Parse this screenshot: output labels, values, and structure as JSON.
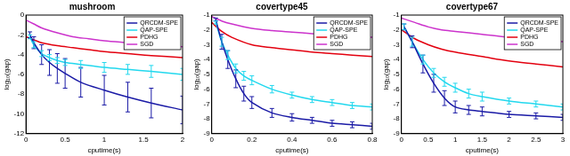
{
  "chart_data": [
    {
      "type": "line",
      "title": "mushroom",
      "xlabel": "cputime(s)",
      "ylabel": "log₁₀(gap)",
      "xlim": [
        0,
        2
      ],
      "xticks": [
        0,
        0.5,
        1,
        1.5,
        2
      ],
      "ylim": [
        -12,
        0
      ],
      "yticks": [
        -12,
        -10,
        -8,
        -6,
        -4,
        -2,
        0
      ],
      "grid": false,
      "legend": "upper right",
      "series": [
        {
          "name": "QRCDM-SPE",
          "color": "#1a1aa6",
          "x": [
            0.05,
            0.1,
            0.2,
            0.3,
            0.4,
            0.5,
            0.7,
            1.0,
            1.3,
            1.6,
            2.0
          ],
          "values": [
            -2,
            -2.8,
            -4,
            -4.8,
            -5.4,
            -5.9,
            -6.8,
            -7.6,
            -8.3,
            -8.9,
            -9.6
          ],
          "errors": [
            0.3,
            0.6,
            1,
            1.3,
            1.5,
            1.5,
            1.5,
            1.5,
            1.5,
            1.5,
            1.4
          ]
        },
        {
          "name": "QAP-SPE",
          "color": "#22d8ee",
          "x": [
            0.05,
            0.1,
            0.2,
            0.3,
            0.4,
            0.5,
            0.7,
            1.0,
            1.3,
            1.6,
            2.0
          ],
          "values": [
            -2.2,
            -3,
            -3.9,
            -4.3,
            -4.6,
            -4.8,
            -5,
            -5.3,
            -5.5,
            -5.7,
            -6
          ],
          "errors": [
            0.2,
            0.3,
            0.3,
            0.3,
            0.3,
            0.3,
            0.4,
            0.5,
            0.5,
            0.6,
            0.6
          ]
        },
        {
          "name": "PDHG",
          "color": "#e3000f",
          "x": [
            0,
            0.1,
            0.2,
            0.4,
            0.6,
            0.8,
            1,
            1.3,
            1.6,
            2
          ],
          "values": [
            -2.2,
            -2.5,
            -2.8,
            -3.1,
            -3.3,
            -3.5,
            -3.7,
            -3.9,
            -4.1,
            -4.3
          ]
        },
        {
          "name": "SGD",
          "color": "#cc33cc",
          "x": [
            0,
            0.1,
            0.2,
            0.4,
            0.6,
            0.8,
            1,
            1.3,
            1.6,
            2
          ],
          "values": [
            -0.5,
            -0.9,
            -1.3,
            -1.8,
            -2.2,
            -2.4,
            -2.6,
            -2.8,
            -3,
            -3.2
          ]
        }
      ]
    },
    {
      "type": "line",
      "title": "covertype45",
      "xlabel": "cputime(s)",
      "ylabel": "log₁₀(gap)",
      "xlim": [
        0,
        0.8
      ],
      "xticks": [
        0,
        0.2,
        0.4,
        0.6,
        0.8
      ],
      "ylim": [
        -9,
        -1
      ],
      "yticks": [
        -9,
        -8,
        -7,
        -6,
        -5,
        -4,
        -3,
        -2,
        -1
      ],
      "grid": false,
      "legend": "upper right",
      "series": [
        {
          "name": "QRCDM-SPE",
          "color": "#1a1aa6",
          "x": [
            0.02,
            0.05,
            0.08,
            0.12,
            0.16,
            0.2,
            0.3,
            0.4,
            0.5,
            0.6,
            0.7,
            0.8
          ],
          "values": [
            -1.3,
            -2.8,
            -4,
            -5.3,
            -6.3,
            -6.9,
            -7.6,
            -7.9,
            -8.1,
            -8.3,
            -8.4,
            -8.5
          ],
          "errors": [
            0.1,
            0.5,
            0.6,
            0.6,
            0.5,
            0.4,
            0.3,
            0.25,
            0.2,
            0.2,
            0.2,
            0.2
          ]
        },
        {
          "name": "QAP-SPE",
          "color": "#22d8ee",
          "x": [
            0.02,
            0.05,
            0.08,
            0.12,
            0.16,
            0.2,
            0.3,
            0.4,
            0.5,
            0.6,
            0.7,
            0.8
          ],
          "values": [
            -1.5,
            -2.8,
            -3.7,
            -4.6,
            -5.1,
            -5.4,
            -6,
            -6.4,
            -6.7,
            -6.9,
            -7.1,
            -7.2
          ],
          "errors": [
            0.1,
            0.3,
            0.3,
            0.3,
            0.3,
            0.3,
            0.25,
            0.2,
            0.2,
            0.2,
            0.2,
            0.2
          ]
        },
        {
          "name": "PDHG",
          "color": "#e3000f",
          "x": [
            0,
            0.05,
            0.1,
            0.2,
            0.3,
            0.4,
            0.5,
            0.6,
            0.7,
            0.8
          ],
          "values": [
            -1.5,
            -2.1,
            -2.5,
            -3,
            -3.2,
            -3.35,
            -3.5,
            -3.6,
            -3.7,
            -3.8
          ]
        },
        {
          "name": "SGD",
          "color": "#cc33cc",
          "x": [
            0,
            0.05,
            0.1,
            0.2,
            0.3,
            0.4,
            0.5,
            0.6,
            0.7,
            0.8
          ],
          "values": [
            -1.1,
            -1.4,
            -1.6,
            -1.9,
            -2.05,
            -2.15,
            -2.25,
            -2.35,
            -2.45,
            -2.5
          ]
        }
      ]
    },
    {
      "type": "line",
      "title": "covertype67",
      "xlabel": "cputime(s)",
      "ylabel": "log₁₀(gap)",
      "xlim": [
        0,
        3
      ],
      "xticks": [
        0,
        0.5,
        1,
        1.5,
        2,
        2.5,
        3
      ],
      "ylim": [
        -9,
        -1
      ],
      "yticks": [
        -9,
        -8,
        -7,
        -6,
        -5,
        -4,
        -3,
        -2,
        -1
      ],
      "grid": false,
      "legend": "upper right",
      "series": [
        {
          "name": "QRCDM-SPE",
          "color": "#1a1aa6",
          "x": [
            0.05,
            0.2,
            0.4,
            0.6,
            0.8,
            1,
            1.25,
            1.5,
            2,
            2.5,
            3
          ],
          "values": [
            -1.8,
            -2.8,
            -4.3,
            -5.6,
            -6.6,
            -7.2,
            -7.4,
            -7.5,
            -7.7,
            -7.8,
            -7.9
          ],
          "errors": [
            0.2,
            0.4,
            0.6,
            0.6,
            0.5,
            0.4,
            0.3,
            0.3,
            0.2,
            0.2,
            0.2
          ]
        },
        {
          "name": "QAP-SPE",
          "color": "#22d8ee",
          "x": [
            0.05,
            0.2,
            0.4,
            0.6,
            0.8,
            1,
            1.25,
            1.5,
            2,
            2.5,
            3
          ],
          "values": [
            -1.8,
            -2.8,
            -4,
            -4.9,
            -5.5,
            -5.9,
            -6.3,
            -6.5,
            -6.8,
            -7,
            -7.2
          ],
          "errors": [
            0.2,
            0.3,
            0.3,
            0.3,
            0.3,
            0.3,
            0.3,
            0.3,
            0.2,
            0.2,
            0.2
          ]
        },
        {
          "name": "PDHG",
          "color": "#e3000f",
          "x": [
            0,
            0.25,
            0.5,
            0.75,
            1,
            1.5,
            2,
            2.5,
            3
          ],
          "values": [
            -2,
            -2.6,
            -3,
            -3.3,
            -3.5,
            -3.8,
            -4.1,
            -4.3,
            -4.5
          ]
        },
        {
          "name": "SGD",
          "color": "#cc33cc",
          "x": [
            0,
            0.25,
            0.5,
            0.75,
            1,
            1.5,
            2,
            2.5,
            3
          ],
          "values": [
            -1.2,
            -1.5,
            -1.8,
            -2,
            -2.1,
            -2.3,
            -2.5,
            -2.65,
            -2.8
          ]
        }
      ]
    }
  ]
}
